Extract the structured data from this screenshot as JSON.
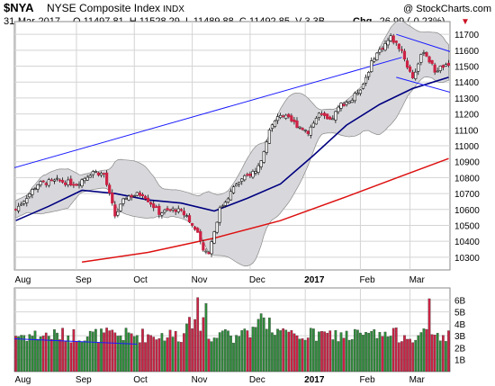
{
  "header": {
    "symbol": "$NYA",
    "name": "NYSE Composite Index",
    "type": "INDX",
    "credit": "@ StockCharts.com",
    "date": "31-Mar-2017",
    "ohlc": "O 11497.81  H 11528.29  L 11489.88  C 11492.85  V 3.3B",
    "chg_label": "Chg",
    "chg_value": "-26.99 (-0.23%)",
    "chg_arrow": "▼"
  },
  "colors": {
    "up": "#2e8b3a",
    "down": "#cc2244",
    "ma50": "#000080",
    "ma200": "#dd1111",
    "band": "#d8d8dc",
    "trendline": "#1a1aff",
    "grid": "#d4d4d4"
  },
  "chart_data": {
    "type": "candlestick",
    "x_labels": [
      "Aug",
      "Sep",
      "Oct",
      "Nov",
      "Dec",
      "2017",
      "Feb",
      "Mar"
    ],
    "price_ticks": [
      10300,
      10400,
      10500,
      10600,
      10700,
      10800,
      10900,
      11000,
      11100,
      11200,
      11300,
      11400,
      11500,
      11600,
      11700
    ],
    "price_ylim": [
      10220,
      11780
    ],
    "volume_ticks": [
      "1B",
      "2B",
      "3B",
      "4B",
      "5B",
      "6B"
    ],
    "volume_ylim": [
      0,
      7
    ],
    "close_anchors": [
      [
        0,
        10600
      ],
      [
        8,
        10760
      ],
      [
        15,
        10780
      ],
      [
        22,
        10760
      ],
      [
        28,
        10840
      ],
      [
        32,
        10820
      ],
      [
        36,
        10560
      ],
      [
        40,
        10680
      ],
      [
        46,
        10700
      ],
      [
        52,
        10580
      ],
      [
        58,
        10600
      ],
      [
        62,
        10560
      ],
      [
        66,
        10440
      ],
      [
        68,
        10340
      ],
      [
        70,
        10330
      ],
      [
        74,
        10600
      ],
      [
        80,
        10760
      ],
      [
        88,
        10860
      ],
      [
        92,
        11100
      ],
      [
        96,
        11200
      ],
      [
        102,
        11130
      ],
      [
        106,
        11090
      ],
      [
        110,
        11200
      ],
      [
        114,
        11150
      ],
      [
        118,
        11260
      ],
      [
        122,
        11290
      ],
      [
        126,
        11390
      ],
      [
        130,
        11560
      ],
      [
        134,
        11640
      ],
      [
        136,
        11680
      ],
      [
        140,
        11600
      ],
      [
        142,
        11500
      ],
      [
        144,
        11430
      ],
      [
        148,
        11600
      ],
      [
        152,
        11470
      ],
      [
        155,
        11500
      ],
      [
        157,
        11490
      ]
    ],
    "ma50_points": [
      [
        0,
        10530
      ],
      [
        12,
        10620
      ],
      [
        24,
        10720
      ],
      [
        36,
        10700
      ],
      [
        48,
        10660
      ],
      [
        60,
        10640
      ],
      [
        72,
        10590
      ],
      [
        84,
        10670
      ],
      [
        96,
        10760
      ],
      [
        108,
        10940
      ],
      [
        120,
        11130
      ],
      [
        132,
        11260
      ],
      [
        144,
        11360
      ],
      [
        157,
        11430
      ]
    ],
    "ma200_points": [
      [
        24,
        10270
      ],
      [
        48,
        10330
      ],
      [
        72,
        10420
      ],
      [
        96,
        10530
      ],
      [
        120,
        10680
      ],
      [
        140,
        10810
      ],
      [
        157,
        10920
      ]
    ],
    "upper_channel": [
      [
        -6,
        10835
      ],
      [
        140,
        11555
      ]
    ],
    "lower_channel": [
      [
        -6,
        10510
      ]
    ],
    "upper_wedge": [
      [
        138,
        11700
      ],
      [
        165,
        11550
      ]
    ],
    "lower_wedge": [
      [
        138,
        11430
      ],
      [
        165,
        11300
      ]
    ],
    "volume_line": [
      [
        -6,
        2.8
      ],
      [
        44,
        2.3
      ]
    ]
  }
}
